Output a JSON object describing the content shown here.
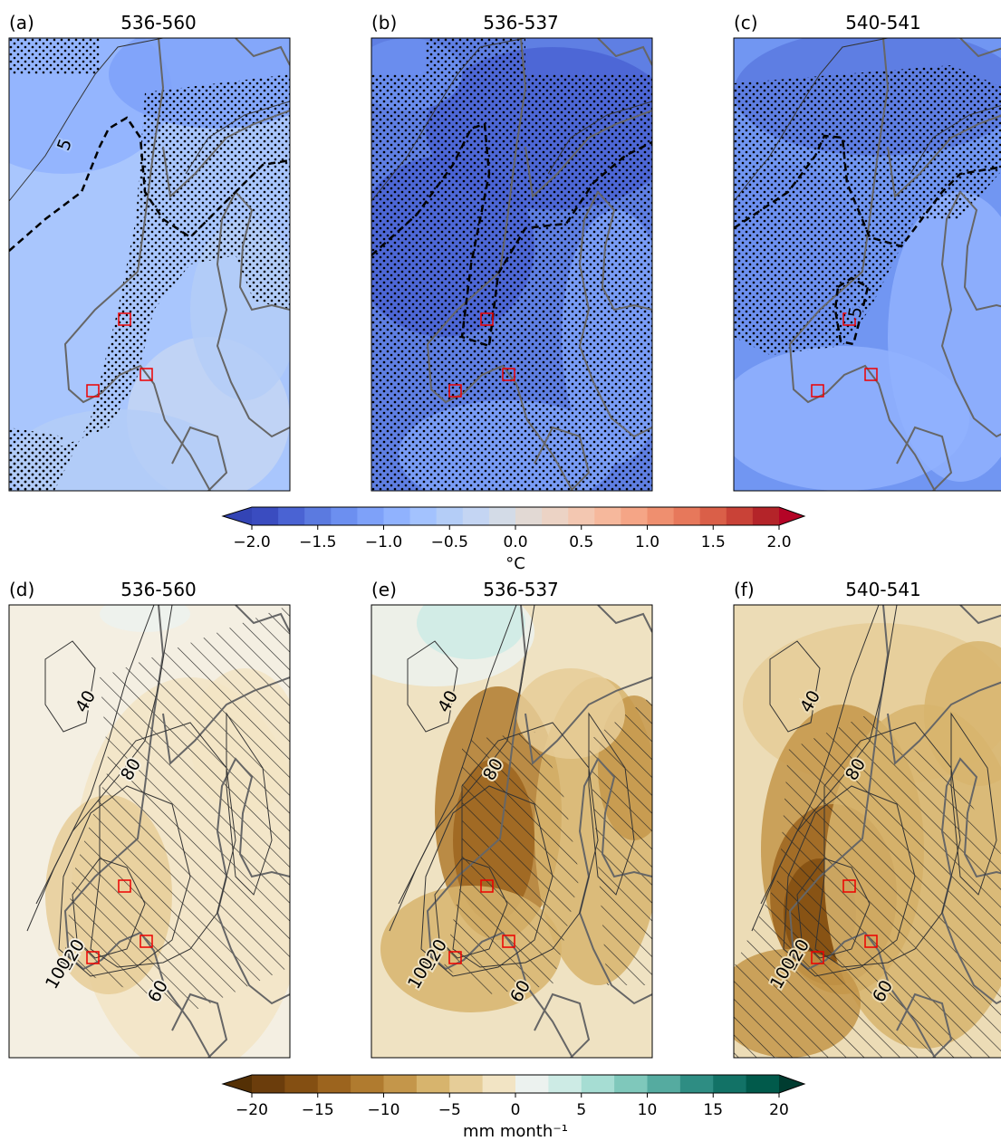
{
  "panels": [
    {
      "label": "(a)",
      "title": "536-560",
      "contour_labels": [
        "5"
      ]
    },
    {
      "label": "(b)",
      "title": "536-537",
      "contour_labels": []
    },
    {
      "label": "(c)",
      "title": "540-541",
      "contour_labels": [
        "5"
      ]
    },
    {
      "label": "(d)",
      "title": "536-560",
      "contour_labels": [
        "40",
        "80",
        "120",
        "100",
        "60"
      ]
    },
    {
      "label": "(e)",
      "title": "536-537",
      "contour_labels": [
        "40",
        "80",
        "120",
        "100",
        "60"
      ]
    },
    {
      "label": "(f)",
      "title": "540-541",
      "contour_labels": [
        "40",
        "80",
        "120",
        "100",
        "60"
      ]
    }
  ],
  "colorbars": [
    {
      "label": "°C",
      "ticks": [
        {
          "value": -2,
          "label": "−2.0"
        },
        {
          "value": -1.5,
          "label": "−1.5"
        },
        {
          "value": -1,
          "label": "−1.0"
        },
        {
          "value": -0.5,
          "label": "−0.5"
        },
        {
          "value": 0,
          "label": "0.0"
        },
        {
          "value": 0.5,
          "label": "0.5"
        },
        {
          "value": 1,
          "label": "1.0"
        },
        {
          "value": 1.5,
          "label": "1.5"
        },
        {
          "value": 2,
          "label": "2.0"
        }
      ],
      "colors": [
        "#3a4cc0",
        "#4a63d3",
        "#5b7ae0",
        "#6c8ff0",
        "#7ea1f9",
        "#90b2fe",
        "#a3c2fe",
        "#b4cdf7",
        "#c4d5f3",
        "#d3dbe7",
        "#e2d9d4",
        "#ecd3c5",
        "#f3c7b1",
        "#f6b89c",
        "#f5a586",
        "#ef8f6f",
        "#e7785b",
        "#da5f48",
        "#c94237",
        "#b42429"
      ],
      "under_color": "#3344b5",
      "over_color": "#b40426"
    },
    {
      "label": "mm month⁻¹",
      "ticks": [
        {
          "value": -20,
          "label": "−20"
        },
        {
          "value": -15,
          "label": "−15"
        },
        {
          "value": -10,
          "label": "−10"
        },
        {
          "value": -5,
          "label": "−5"
        },
        0,
        5,
        10,
        15,
        20
      ],
      "colors": [
        "#6b3d0c",
        "#844f12",
        "#9c641e",
        "#b07b2f",
        "#c4964a",
        "#d7b46d",
        "#e6cd98",
        "#f2e4c4",
        "#ecf2ef",
        "#cdebe5",
        "#a6ddd3",
        "#7fc8bb",
        "#55aba0",
        "#2e8d83",
        "#127266",
        "#015a4b"
      ],
      "under_color": "#543005",
      "over_color": "#003c30"
    }
  ]
}
